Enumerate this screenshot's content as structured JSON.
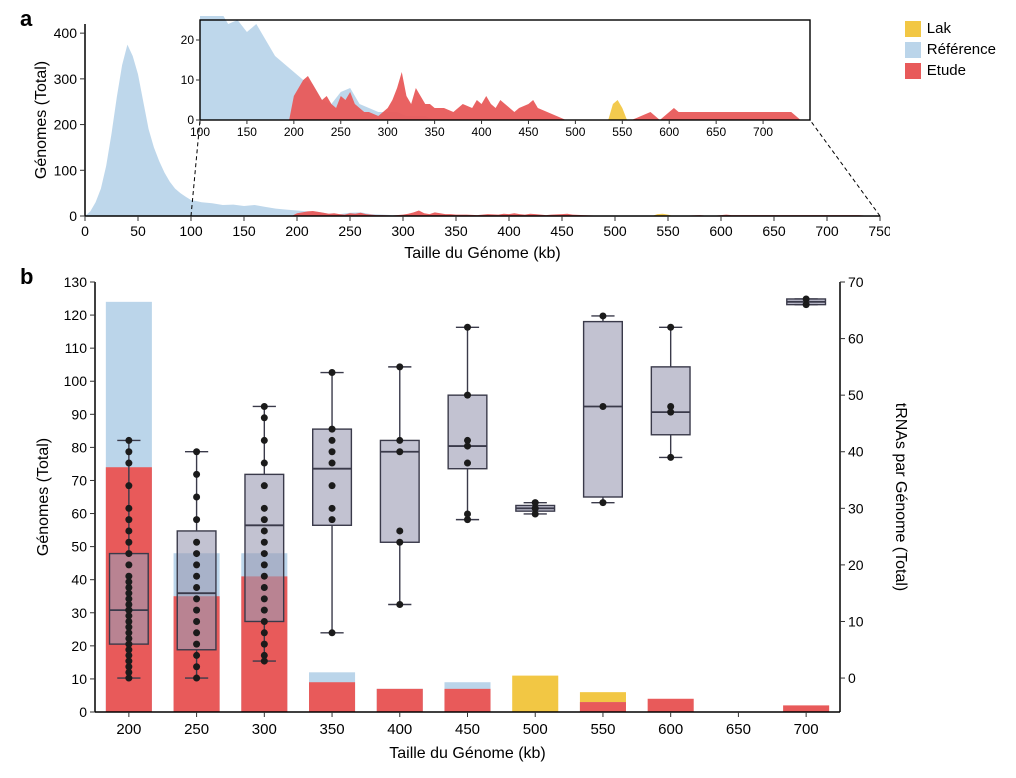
{
  "legend": {
    "items": [
      {
        "name": "Lak",
        "color": "#f2c744"
      },
      {
        "name": "Référence",
        "color": "#bbd5ea"
      },
      {
        "name": "Etude",
        "color": "#e85a5a"
      }
    ]
  },
  "panelA": {
    "label": "a",
    "xlabel": "Taille du Génome (kb)",
    "ylabel": "Génomes (Total)",
    "title_fontsize": 22,
    "axis_fontsize": 16,
    "tick_fontsize": 14,
    "background_color": "#ffffff",
    "axis_color": "#000000",
    "tick_color": "#303030",
    "main": {
      "xlim": [
        0,
        750
      ],
      "ylim": [
        0,
        420
      ],
      "xticks": [
        0,
        50,
        100,
        150,
        200,
        250,
        300,
        350,
        400,
        450,
        500,
        550,
        600,
        650,
        700,
        750
      ],
      "yticks": [
        0,
        100,
        200,
        300,
        400
      ],
      "series_reference": {
        "color": "#bbd5ea",
        "opacity": 0.95,
        "points": [
          [
            0,
            0
          ],
          [
            5,
            10
          ],
          [
            10,
            30
          ],
          [
            15,
            60
          ],
          [
            20,
            110
          ],
          [
            25,
            180
          ],
          [
            30,
            260
          ],
          [
            35,
            330
          ],
          [
            40,
            375
          ],
          [
            45,
            350
          ],
          [
            50,
            310
          ],
          [
            55,
            250
          ],
          [
            60,
            190
          ],
          [
            65,
            150
          ],
          [
            70,
            120
          ],
          [
            75,
            95
          ],
          [
            80,
            75
          ],
          [
            85,
            60
          ],
          [
            90,
            50
          ],
          [
            95,
            42
          ],
          [
            100,
            35
          ],
          [
            110,
            30
          ],
          [
            120,
            28
          ],
          [
            130,
            24
          ],
          [
            140,
            25
          ],
          [
            150,
            22
          ],
          [
            160,
            24
          ],
          [
            170,
            20
          ],
          [
            180,
            16
          ],
          [
            190,
            14
          ],
          [
            200,
            12
          ],
          [
            210,
            10
          ],
          [
            220,
            9
          ],
          [
            230,
            5
          ],
          [
            240,
            4
          ],
          [
            250,
            7
          ],
          [
            260,
            8
          ],
          [
            270,
            4
          ],
          [
            280,
            3
          ],
          [
            290,
            2
          ],
          [
            300,
            2
          ],
          [
            310,
            2
          ],
          [
            320,
            1
          ],
          [
            330,
            1
          ],
          [
            340,
            1
          ],
          [
            350,
            0
          ],
          [
            400,
            0
          ],
          [
            450,
            0
          ],
          [
            500,
            0
          ],
          [
            530,
            0
          ],
          [
            540,
            0
          ],
          [
            550,
            0
          ],
          [
            560,
            0
          ],
          [
            600,
            0
          ],
          [
            650,
            0
          ],
          [
            700,
            0
          ],
          [
            750,
            0
          ]
        ]
      },
      "series_lak": {
        "color": "#f2c744",
        "opacity": 0.95,
        "points": [
          [
            535,
            0
          ],
          [
            540,
            4
          ],
          [
            545,
            5
          ],
          [
            550,
            3
          ],
          [
            555,
            0
          ]
        ]
      },
      "series_study": {
        "color": "#e85a5a",
        "opacity": 0.95,
        "points": [
          [
            195,
            0
          ],
          [
            200,
            6
          ],
          [
            205,
            8
          ],
          [
            210,
            10
          ],
          [
            215,
            11
          ],
          [
            220,
            9
          ],
          [
            225,
            7
          ],
          [
            230,
            5
          ],
          [
            235,
            6
          ],
          [
            240,
            4
          ],
          [
            245,
            3
          ],
          [
            250,
            6
          ],
          [
            255,
            5
          ],
          [
            260,
            7
          ],
          [
            265,
            4
          ],
          [
            270,
            3
          ],
          [
            275,
            2
          ],
          [
            280,
            2
          ],
          [
            290,
            1
          ],
          [
            300,
            3
          ],
          [
            305,
            5
          ],
          [
            310,
            8
          ],
          [
            315,
            12
          ],
          [
            320,
            6
          ],
          [
            325,
            4
          ],
          [
            330,
            8
          ],
          [
            335,
            6
          ],
          [
            340,
            4
          ],
          [
            345,
            4
          ],
          [
            350,
            3
          ],
          [
            360,
            3
          ],
          [
            370,
            2
          ],
          [
            380,
            4
          ],
          [
            390,
            3
          ],
          [
            395,
            5
          ],
          [
            400,
            4
          ],
          [
            405,
            6
          ],
          [
            410,
            4
          ],
          [
            415,
            3
          ],
          [
            420,
            5
          ],
          [
            425,
            4
          ],
          [
            430,
            3
          ],
          [
            435,
            2
          ],
          [
            440,
            3
          ],
          [
            450,
            4
          ],
          [
            455,
            5
          ],
          [
            460,
            3
          ],
          [
            470,
            2
          ],
          [
            480,
            1
          ],
          [
            490,
            0
          ],
          [
            500,
            0
          ],
          [
            540,
            0
          ],
          [
            560,
            0
          ],
          [
            570,
            1
          ],
          [
            580,
            2
          ],
          [
            590,
            0
          ],
          [
            600,
            2
          ],
          [
            605,
            3
          ],
          [
            610,
            2
          ],
          [
            620,
            2
          ],
          [
            630,
            2
          ],
          [
            640,
            2
          ],
          [
            650,
            2
          ],
          [
            660,
            2
          ],
          [
            670,
            2
          ],
          [
            680,
            2
          ],
          [
            690,
            2
          ],
          [
            700,
            2
          ],
          [
            710,
            2
          ],
          [
            720,
            2
          ],
          [
            730,
            2
          ],
          [
            735,
            1
          ],
          [
            740,
            0
          ]
        ]
      },
      "inset_connector": {
        "color": "#000000",
        "dash": "4 3"
      }
    },
    "inset": {
      "xlim": [
        100,
        750
      ],
      "ylim": [
        0,
        25
      ],
      "xticks": [
        100,
        150,
        200,
        250,
        300,
        350,
        400,
        450,
        500,
        550,
        600,
        650,
        700
      ],
      "yticks": [
        0,
        10,
        20
      ],
      "border_color": "#000000"
    }
  },
  "panelB": {
    "label": "b",
    "xlabel": "Taille du Génome (kb)",
    "ylabel_left": "Génomes (Total)",
    "ylabel_right": "tRNAs par Génome (Total)",
    "background_color": "#ffffff",
    "axis_color": "#000000",
    "tick_color": "#303030",
    "xticks": [
      200,
      250,
      300,
      350,
      400,
      450,
      500,
      550,
      600,
      650,
      700
    ],
    "left": {
      "ylim": [
        0,
        130
      ],
      "yticks": [
        0,
        10,
        20,
        30,
        40,
        50,
        60,
        70,
        80,
        90,
        100,
        110,
        120,
        130
      ]
    },
    "right": {
      "ylim": [
        -6,
        70
      ],
      "yticks": [
        0,
        10,
        20,
        30,
        40,
        50,
        60,
        70
      ]
    },
    "bars": {
      "bar_width": 0.68,
      "categories": [
        200,
        250,
        300,
        350,
        400,
        450,
        500,
        550,
        600,
        650,
        700
      ],
      "study": {
        "color": "#e85a5a",
        "values": [
          74,
          35,
          41,
          9,
          7,
          7,
          0,
          3,
          4,
          0,
          2
        ]
      },
      "reference": {
        "color": "#bbd5ea",
        "values": [
          124,
          48,
          48,
          12,
          7,
          9,
          0,
          3,
          0,
          0,
          0
        ]
      },
      "lak": {
        "color": "#f2c744",
        "values": [
          0,
          0,
          0,
          0,
          0,
          0,
          11,
          6,
          0,
          0,
          0
        ]
      }
    },
    "boxes": {
      "fill": "#9c9cb5",
      "fill_opacity": 0.62,
      "stroke": "#3a3a4a",
      "stroke_width": 1.4,
      "whisker_color": "#3a3a4a",
      "median_color": "#3a3a4a",
      "point_color": "#1b1b1b",
      "point_radius": 3.5,
      "data": [
        {
          "x": 200,
          "low": 0,
          "q1": 6,
          "med": 12,
          "q3": 22,
          "high": 42,
          "points": [
            0,
            1,
            2,
            3,
            4,
            5,
            6,
            7,
            8,
            9,
            10,
            11,
            12,
            12,
            13,
            14,
            15,
            16,
            17,
            18,
            20,
            22,
            24,
            26,
            28,
            30,
            34,
            38,
            40,
            42
          ]
        },
        {
          "x": 250,
          "low": 0,
          "q1": 5,
          "med": 15,
          "q3": 26,
          "high": 40,
          "points": [
            0,
            2,
            4,
            6,
            8,
            10,
            12,
            14,
            16,
            18,
            20,
            22,
            24,
            28,
            32,
            36,
            40
          ]
        },
        {
          "x": 300,
          "low": 3,
          "q1": 10,
          "med": 27,
          "q3": 36,
          "high": 48,
          "points": [
            3,
            4,
            6,
            8,
            10,
            12,
            14,
            16,
            18,
            20,
            22,
            24,
            26,
            28,
            30,
            34,
            38,
            42,
            46,
            48
          ]
        },
        {
          "x": 350,
          "low": 8,
          "q1": 27,
          "med": 37,
          "q3": 44,
          "high": 54,
          "points": [
            8,
            28,
            30,
            34,
            38,
            40,
            42,
            44,
            54
          ]
        },
        {
          "x": 400,
          "low": 13,
          "q1": 24,
          "med": 40,
          "q3": 42,
          "high": 55,
          "points": [
            13,
            24,
            26,
            40,
            42,
            55
          ]
        },
        {
          "x": 450,
          "low": 28,
          "q1": 37,
          "med": 41,
          "q3": 50,
          "high": 62,
          "points": [
            28,
            29,
            38,
            41,
            42,
            50,
            62
          ]
        },
        {
          "x": 500,
          "low": 29,
          "q1": 29.5,
          "med": 30,
          "q3": 30.5,
          "high": 31,
          "points": [
            29,
            30,
            30,
            31
          ]
        },
        {
          "x": 550,
          "low": 31,
          "q1": 32,
          "med": 48,
          "q3": 63,
          "high": 64,
          "points": [
            31,
            48,
            64
          ]
        },
        {
          "x": 600,
          "low": 39,
          "q1": 43,
          "med": 47,
          "q3": 55,
          "high": 62,
          "points": [
            39,
            47,
            48,
            62
          ]
        },
        {
          "x": 700,
          "low": 66,
          "q1": 66,
          "med": 66.5,
          "q3": 67,
          "high": 67,
          "points": [
            66,
            67
          ]
        }
      ]
    }
  }
}
